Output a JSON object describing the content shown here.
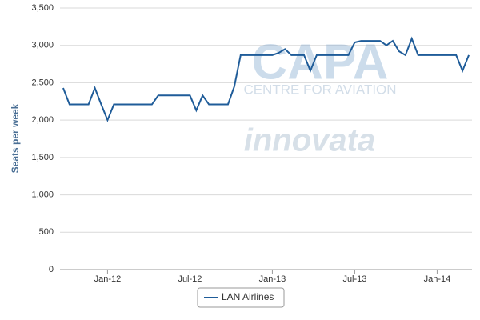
{
  "chart_data": {
    "type": "line",
    "y_label": "Seats per week",
    "watermark": {
      "logo": "CAPA",
      "tagline": "CENTRE FOR AVIATION",
      "partner": "innovata"
    },
    "categories": [
      null,
      null,
      null,
      null,
      null,
      null,
      null,
      "Jan-12",
      null,
      null,
      null,
      null,
      null,
      null,
      null,
      null,
      null,
      null,
      null,
      null,
      "Jul-12",
      null,
      null,
      null,
      null,
      null,
      null,
      null,
      null,
      null,
      null,
      null,
      null,
      "Jan-13",
      null,
      null,
      null,
      null,
      null,
      null,
      null,
      null,
      null,
      null,
      null,
      null,
      "Jul-13",
      null,
      null,
      null,
      null,
      null,
      null,
      null,
      null,
      null,
      null,
      null,
      null,
      "Jan-14",
      null,
      null,
      null,
      null,
      null
    ],
    "series": [
      {
        "name": "LAN Airlines",
        "color": "#1f5c99",
        "values": [
          2430,
          2210,
          2210,
          2210,
          2210,
          2430,
          2210,
          2000,
          2210,
          2210,
          2210,
          2210,
          2210,
          2210,
          2210,
          2330,
          2330,
          2330,
          2330,
          2330,
          2330,
          2130,
          2330,
          2210,
          2210,
          2210,
          2210,
          2450,
          2870,
          2870,
          2870,
          2870,
          2870,
          2870,
          2900,
          2950,
          2870,
          2870,
          2870,
          2660,
          2870,
          2870,
          2870,
          2870,
          2870,
          2870,
          3040,
          3060,
          3060,
          3060,
          3060,
          3000,
          3060,
          2920,
          2870,
          3090,
          2870,
          2870,
          2870,
          2870,
          2870,
          2870,
          2870,
          2660,
          2870
        ]
      }
    ],
    "ylim": [
      0,
      3500
    ],
    "yticks": [
      0,
      {
        "value": 500,
        "label": "500"
      },
      {
        "value": 1000,
        "label": "1,000"
      },
      {
        "value": 1500,
        "label": "1,500"
      },
      {
        "value": 2000,
        "label": "2,000"
      },
      {
        "value": 2500,
        "label": "2,500"
      },
      {
        "value": 3000,
        "label": "3,000"
      },
      {
        "value": 3500,
        "label": "3,500"
      }
    ],
    "grid": true
  }
}
